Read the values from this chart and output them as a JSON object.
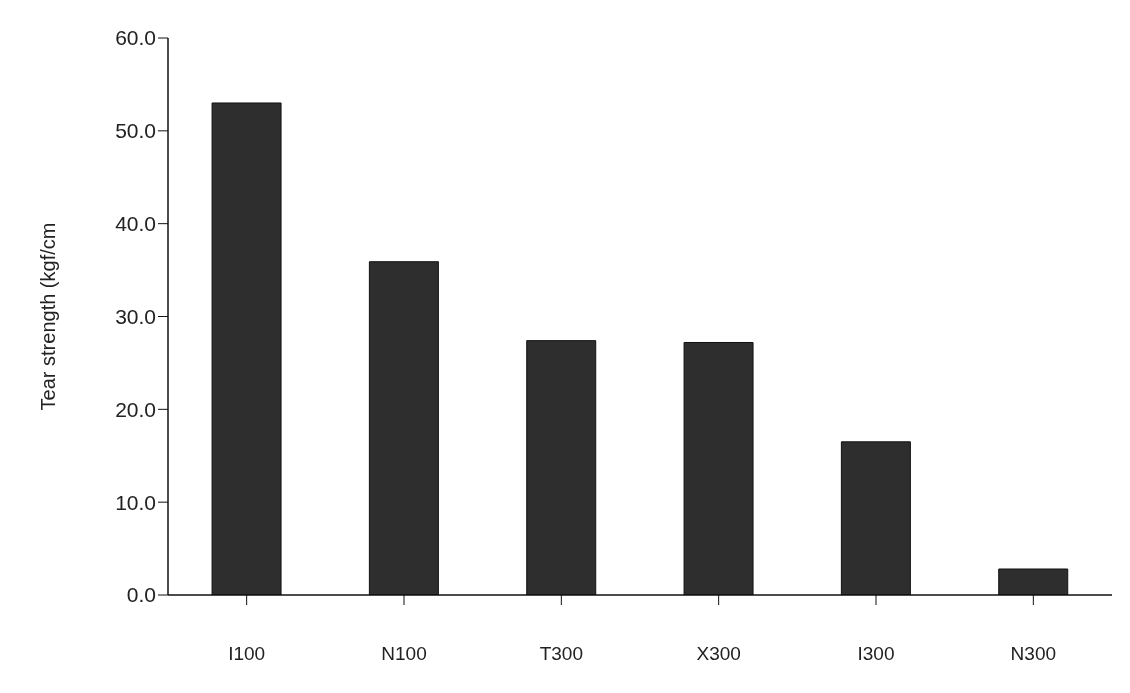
{
  "chart_data": {
    "type": "bar",
    "ylabel": "Tear strength (kgf/cm",
    "categories": [
      "I100",
      "N100",
      "T300",
      "X300",
      "I300",
      "N300"
    ],
    "values": [
      53.0,
      35.9,
      27.4,
      27.2,
      16.5,
      2.8
    ],
    "color": "#2e2e2e",
    "ylim": [
      0,
      60
    ],
    "yticks": [
      {
        "value": 0,
        "label": "0.0"
      },
      {
        "value": 10,
        "label": "10.0"
      },
      {
        "value": 20,
        "label": "20.0"
      },
      {
        "value": 30,
        "label": "30.0"
      },
      {
        "value": 40,
        "label": "40.0"
      },
      {
        "value": 50,
        "label": "50.0"
      },
      {
        "value": 60,
        "label": "60.0"
      }
    ],
    "grid": false
  }
}
